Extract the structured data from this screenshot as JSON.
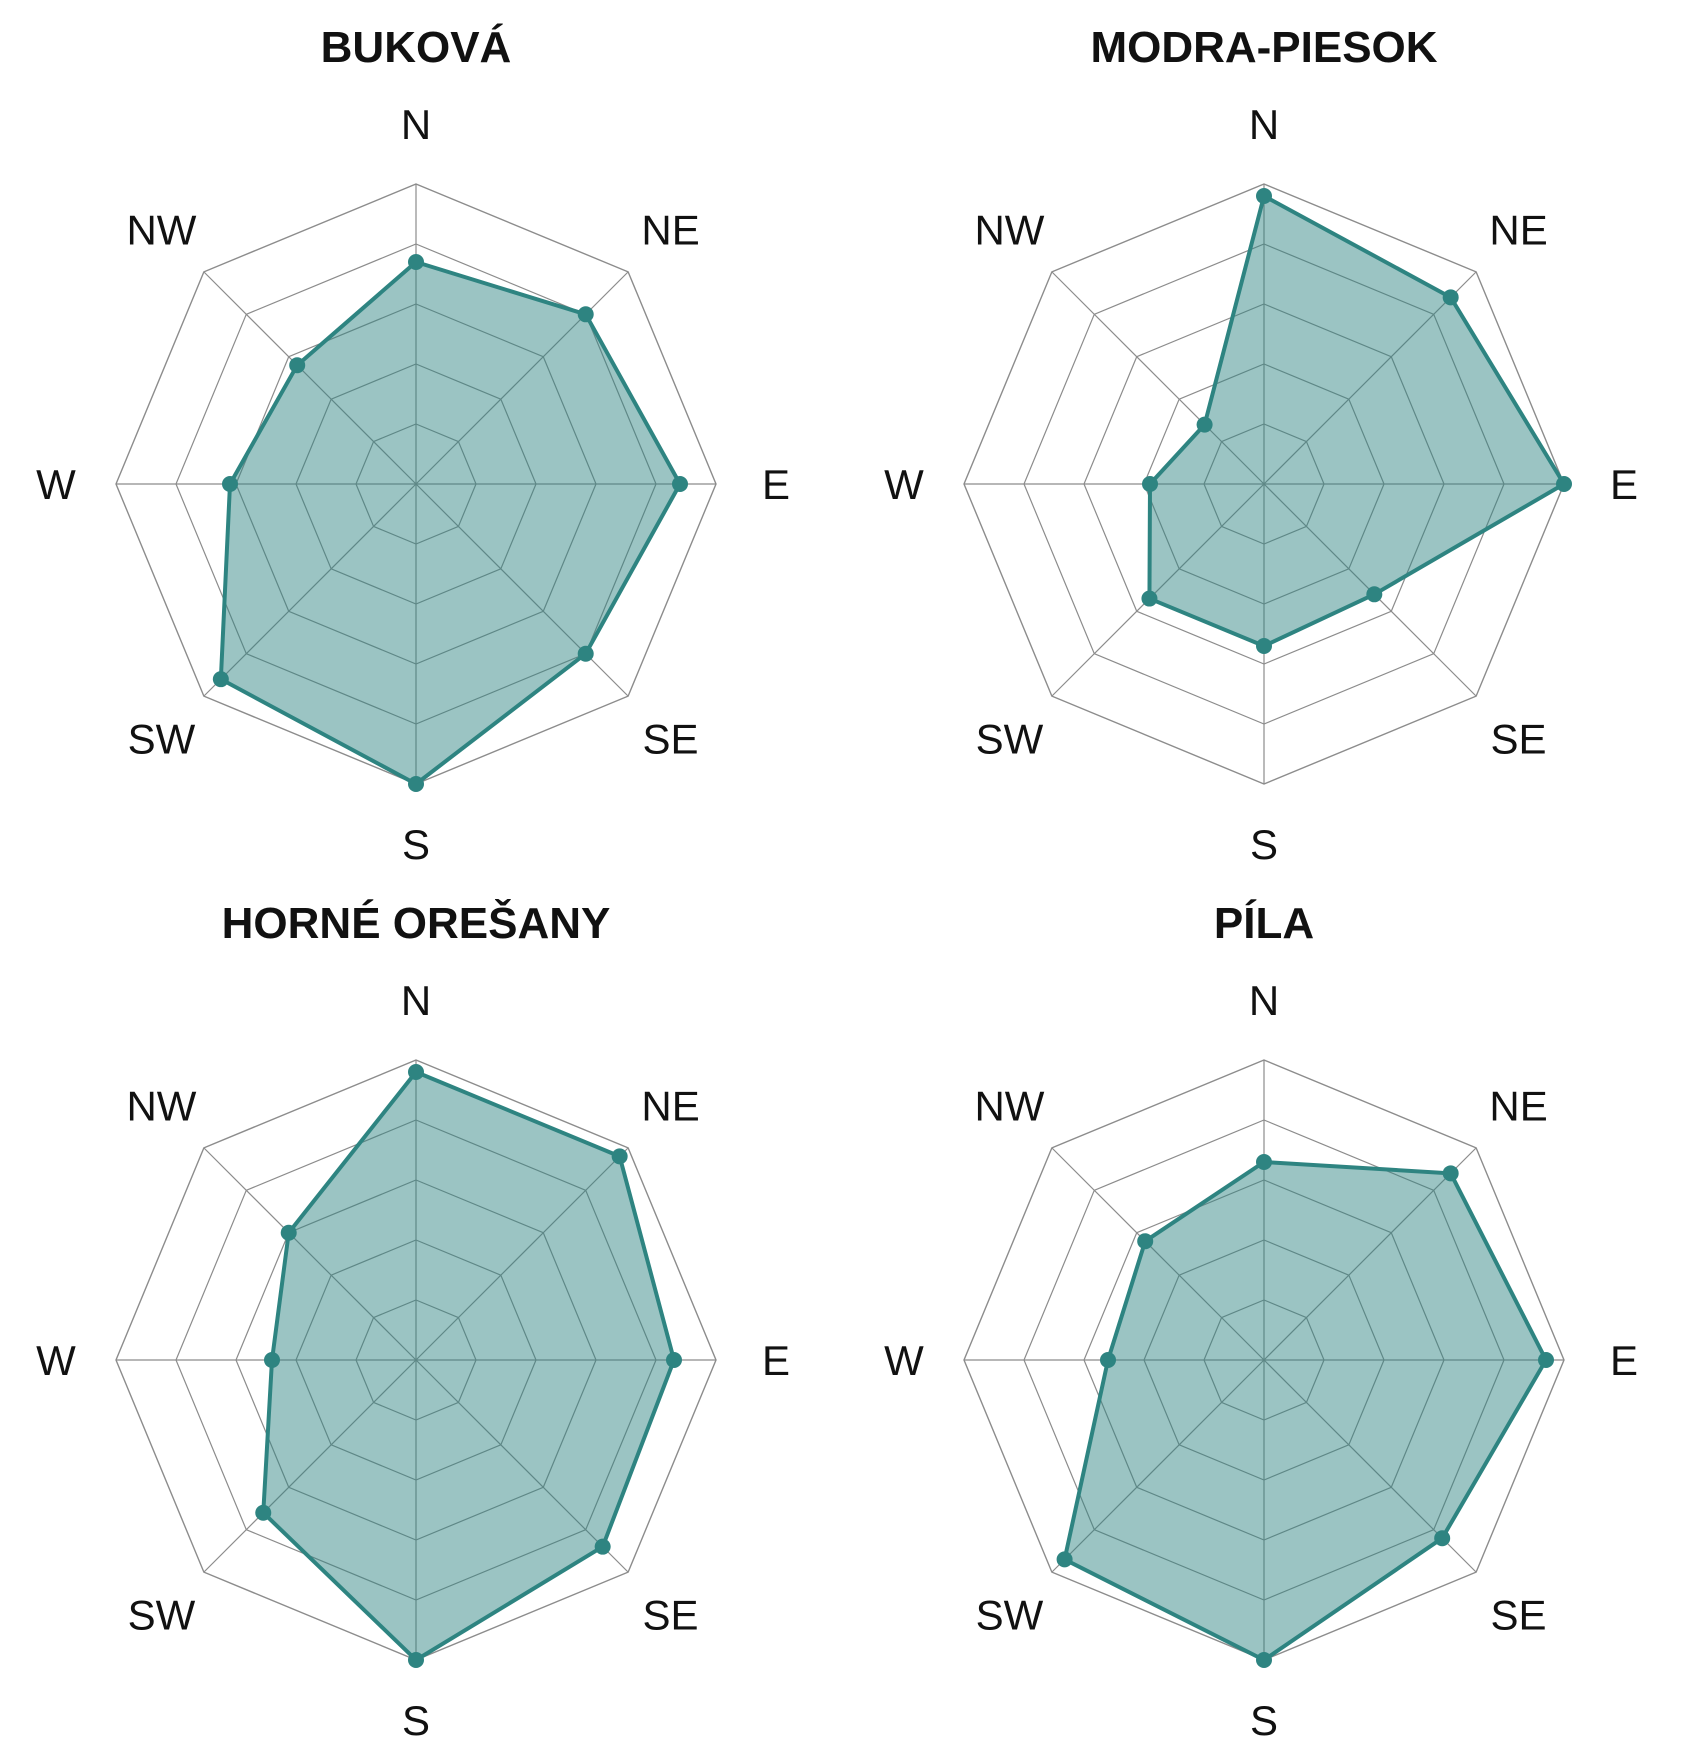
{
  "colors": {
    "series": "#2e8481",
    "fill": "#2e8481",
    "grid": "#8c8c8c",
    "text": "#111111"
  },
  "chart_data": [
    {
      "type": "radar",
      "title": "BUKOVÁ",
      "categories": [
        "N",
        "NE",
        "E",
        "SE",
        "S",
        "SW",
        "W",
        "NW"
      ],
      "rlim": [
        0,
        5
      ],
      "rings": 5,
      "values": [
        3.7,
        4.0,
        4.4,
        4.0,
        5.0,
        4.6,
        3.1,
        2.8
      ]
    },
    {
      "type": "radar",
      "title": "MODRA-PIESOK",
      "categories": [
        "N",
        "NE",
        "E",
        "SE",
        "S",
        "SW",
        "W",
        "NW"
      ],
      "rlim": [
        0,
        5
      ],
      "rings": 5,
      "values": [
        4.8,
        4.4,
        5.0,
        2.6,
        2.7,
        2.7,
        1.9,
        1.4
      ]
    },
    {
      "type": "radar",
      "title": "HORNÉ OREŠANY",
      "categories": [
        "N",
        "NE",
        "E",
        "SE",
        "S",
        "SW",
        "W",
        "NW"
      ],
      "rlim": [
        0,
        5
      ],
      "rings": 5,
      "values": [
        4.8,
        4.8,
        4.3,
        4.4,
        5.0,
        3.6,
        2.4,
        3.0
      ]
    },
    {
      "type": "radar",
      "title": "PÍLA",
      "categories": [
        "N",
        "NE",
        "E",
        "SE",
        "S",
        "SW",
        "W",
        "NW"
      ],
      "rlim": [
        0,
        5
      ],
      "rings": 5,
      "values": [
        3.3,
        4.4,
        4.7,
        4.2,
        5.0,
        4.7,
        2.6,
        2.8
      ]
    }
  ]
}
